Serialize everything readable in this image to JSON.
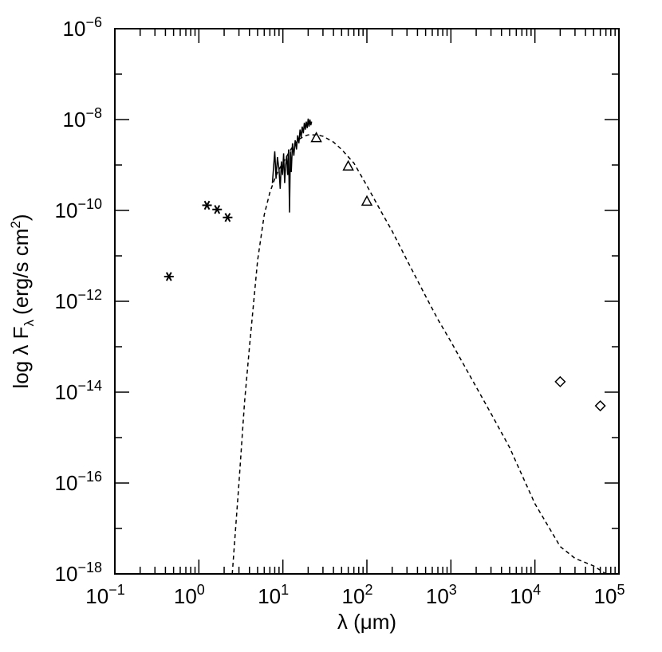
{
  "chart_data": {
    "type": "scatter",
    "xlabel": "λ (μm)",
    "ylabel": "log λ F",
    "ylabel_sub": "λ",
    "ylabel_units": "(erg/s cm",
    "ylabel_units_sup": "2",
    "ylabel_units_close": ")",
    "x_scale": "log",
    "y_scale": "log",
    "xlim": [
      0.1,
      100000
    ],
    "ylim": [
      1e-18,
      1e-06
    ],
    "x_ticks": [
      {
        "base": "10",
        "exp": "−1",
        "value": 0.1
      },
      {
        "base": "10",
        "exp": "0",
        "value": 1
      },
      {
        "base": "10",
        "exp": "1",
        "value": 10
      },
      {
        "base": "10",
        "exp": "2",
        "value": 100
      },
      {
        "base": "10",
        "exp": "3",
        "value": 1000
      },
      {
        "base": "10",
        "exp": "4",
        "value": 10000
      },
      {
        "base": "10",
        "exp": "5",
        "value": 100000
      }
    ],
    "y_ticks": [
      {
        "base": "10",
        "exp": "−6",
        "value": 1e-06
      },
      {
        "base": "10",
        "exp": "−8",
        "value": 1e-08
      },
      {
        "base": "10",
        "exp": "−10",
        "value": 1e-10
      },
      {
        "base": "10",
        "exp": "−12",
        "value": 1e-12
      },
      {
        "base": "10",
        "exp": "−14",
        "value": 1e-14
      },
      {
        "base": "10",
        "exp": "−16",
        "value": 1e-16
      },
      {
        "base": "10",
        "exp": "−18",
        "value": 1e-18
      }
    ],
    "grid": false,
    "series": [
      {
        "marker": "asterisk",
        "x": [
          0.44,
          1.25,
          1.65,
          2.2
        ],
        "y": [
          3.5e-12,
          1.3e-10,
          1.05e-10,
          7e-11
        ]
      },
      {
        "marker": "triangle",
        "x": [
          25,
          60,
          100
        ],
        "y": [
          4e-09,
          9.5e-10,
          1.6e-10
        ]
      },
      {
        "marker": "diamond",
        "x": [
          20000,
          60000
        ],
        "y": [
          1.7e-14,
          5e-15
        ]
      },
      {
        "style": "dashed-line",
        "x": [
          2.5,
          3,
          3.5,
          4,
          5,
          6,
          7,
          8,
          9,
          10,
          11,
          12,
          14,
          16,
          18,
          20,
          25,
          30,
          40,
          50,
          70,
          100,
          150,
          200,
          300,
          500,
          700,
          1000,
          2000,
          3000,
          5000,
          7000,
          10000,
          20000,
          30000,
          50000,
          70000
        ],
        "y": [
          1e-18,
          1e-16,
          6e-15,
          1e-13,
          8e-12,
          8e-11,
          2.5e-10,
          5e-10,
          8e-10,
          1.1e-09,
          1.5e-09,
          2e-09,
          3e-09,
          3.8e-09,
          4.3e-09,
          4.6e-09,
          4.6e-09,
          4.3e-09,
          3.2e-09,
          2.2e-09,
          1.1e-09,
          3.5e-10,
          9e-11,
          3.5e-11,
          8e-12,
          1.3e-12,
          4e-13,
          1.3e-13,
          1.3e-14,
          3.4e-15,
          6e-16,
          1.5e-16,
          3.5e-17,
          4e-18,
          2.2e-18,
          1.5e-18,
          1e-18
        ]
      },
      {
        "style": "spectrum",
        "x": [
          7.5,
          8,
          8.3,
          8.6,
          9,
          9.3,
          9.6,
          9.9,
          10.2,
          10.5,
          10.8,
          11.1,
          11.4,
          11.7,
          12,
          12.3,
          12.6,
          13,
          13.5,
          14,
          14.5,
          15,
          15.5,
          16,
          16.5,
          17,
          17.5,
          18,
          18.5,
          19,
          19.5,
          20,
          20.5,
          21,
          21.5,
          22
        ],
        "y": [
          4e-10,
          2e-09,
          5e-10,
          1.5e-09,
          8e-10,
          3e-10,
          1.2e-09,
          6e-10,
          1.8e-09,
          4e-10,
          1e-09,
          1.6e-09,
          6e-10,
          2.2e-09,
          9e-11,
          2e-09,
          7e-10,
          3e-09,
          1.6e-09,
          3.5e-09,
          2.2e-09,
          4.5e-09,
          3e-09,
          6e-09,
          4e-09,
          7e-09,
          5e-09,
          8.5e-09,
          6e-09,
          9e-09,
          6.5e-09,
          1.05e-08,
          7e-09,
          1e-08,
          7.5e-09,
          9e-09
        ]
      }
    ]
  }
}
